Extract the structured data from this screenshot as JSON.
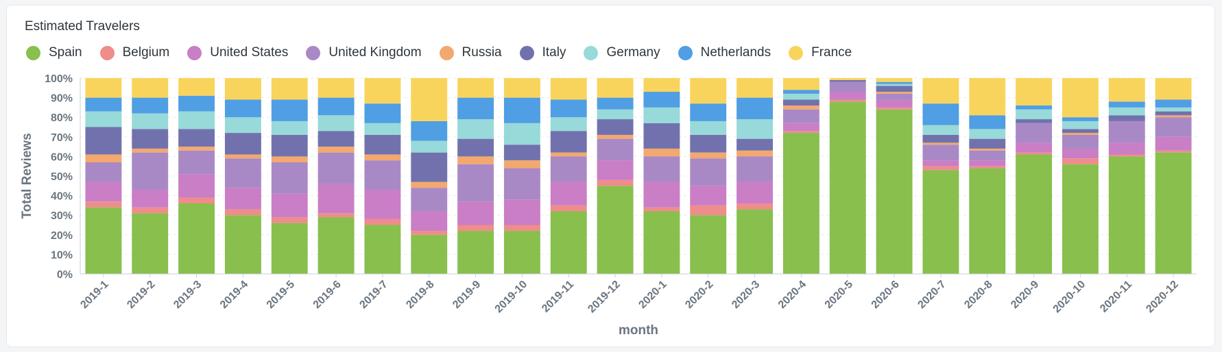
{
  "card": {
    "title": "Estimated Travelers"
  },
  "chart_data": {
    "type": "bar",
    "stacked": true,
    "normalized": true,
    "title": "Estimated Travelers",
    "xlabel": "month",
    "ylabel": "Total Reviews",
    "ylim": [
      0,
      100
    ],
    "yticks": [
      "0%",
      "10%",
      "20%",
      "30%",
      "40%",
      "50%",
      "60%",
      "70%",
      "80%",
      "90%",
      "100%"
    ],
    "grid": true,
    "legend_position": "top-left",
    "categories": [
      "2019-1",
      "2019-2",
      "2019-3",
      "2019-4",
      "2019-5",
      "2019-6",
      "2019-7",
      "2019-8",
      "2019-9",
      "2019-10",
      "2019-11",
      "2019-12",
      "2020-1",
      "2020-2",
      "2020-3",
      "2020-4",
      "2020-5",
      "2020-6",
      "2020-7",
      "2020-8",
      "2020-9",
      "2020-10",
      "2020-11",
      "2020-12"
    ],
    "series": [
      {
        "name": "Spain",
        "color": "#88bf4d",
        "values": [
          34,
          31,
          36,
          30,
          26,
          29,
          25,
          20,
          22,
          22,
          32,
          45,
          32,
          30,
          33,
          72,
          88,
          84,
          53,
          54,
          61,
          56,
          60,
          62
        ]
      },
      {
        "name": "Belgium",
        "color": "#ef8c8c",
        "values": [
          3,
          3,
          3,
          3,
          3,
          2,
          3,
          2,
          3,
          3,
          3,
          3,
          2,
          5,
          3,
          1,
          1,
          1,
          2,
          1,
          1,
          3,
          1,
          1
        ]
      },
      {
        "name": "United States",
        "color": "#c97ec5",
        "values": [
          10,
          9,
          12,
          11,
          12,
          15,
          15,
          10,
          12,
          13,
          12,
          10,
          13,
          10,
          11,
          4,
          4,
          4,
          3,
          3,
          5,
          5,
          6,
          7
        ]
      },
      {
        "name": "United Kingdom",
        "color": "#a989c5",
        "values": [
          10,
          19,
          12,
          15,
          16,
          16,
          15,
          12,
          19,
          16,
          13,
          11,
          13,
          14,
          13,
          7,
          5,
          3,
          8,
          5,
          10,
          7,
          11,
          10
        ]
      },
      {
        "name": "Russia",
        "color": "#f2a86f",
        "values": [
          4,
          2,
          2,
          2,
          3,
          3,
          3,
          3,
          4,
          4,
          2,
          2,
          4,
          3,
          3,
          2,
          0,
          1,
          1,
          1,
          0,
          1,
          0,
          1
        ]
      },
      {
        "name": "Italy",
        "color": "#7172ad",
        "values": [
          14,
          10,
          9,
          11,
          11,
          8,
          10,
          15,
          9,
          8,
          11,
          8,
          13,
          9,
          6,
          3,
          1,
          3,
          4,
          5,
          2,
          2,
          3,
          2
        ]
      },
      {
        "name": "Germany",
        "color": "#98d9d9",
        "values": [
          8,
          8,
          9,
          8,
          7,
          8,
          6,
          6,
          10,
          11,
          7,
          5,
          8,
          7,
          10,
          3,
          0,
          1,
          5,
          5,
          5,
          4,
          4,
          2
        ]
      },
      {
        "name": "Netherlands",
        "color": "#509ee3",
        "values": [
          7,
          8,
          8,
          9,
          11,
          9,
          10,
          10,
          11,
          13,
          9,
          6,
          8,
          9,
          11,
          2,
          0,
          1,
          11,
          7,
          2,
          2,
          3,
          4
        ]
      },
      {
        "name": "France",
        "color": "#f9d45c",
        "values": [
          10,
          10,
          9,
          11,
          11,
          10,
          13,
          22,
          10,
          10,
          11,
          10,
          7,
          13,
          10,
          6,
          1,
          2,
          13,
          19,
          14,
          20,
          12,
          11
        ]
      }
    ]
  }
}
